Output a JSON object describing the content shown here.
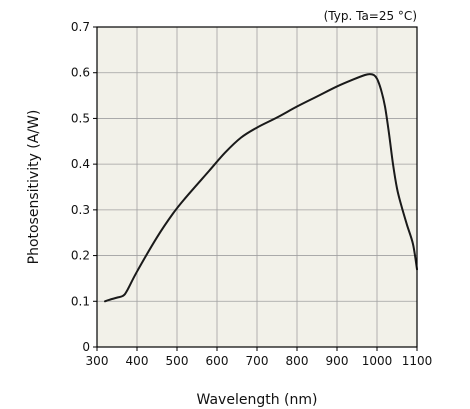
{
  "chart_data": {
    "type": "line",
    "annotation": "(Typ. Ta=25 °C)",
    "xlabel": "Wavelength (nm)",
    "ylabel": "Photosensitivity (A/W)",
    "xlim": [
      300,
      1100
    ],
    "ylim": [
      0,
      0.7
    ],
    "xticks": [
      300,
      400,
      500,
      600,
      700,
      800,
      900,
      1000,
      1100
    ],
    "yticks": [
      0,
      0.1,
      0.2,
      0.3,
      0.4,
      0.5,
      0.6,
      0.7
    ],
    "xtick_labels": [
      "300",
      "400",
      "500",
      "600",
      "700",
      "800",
      "900",
      "1000",
      "1100"
    ],
    "ytick_labels": [
      "0",
      "0.1",
      "0.2",
      "0.3",
      "0.4",
      "0.5",
      "0.6",
      "0.7"
    ],
    "grid": true,
    "colors": {
      "plot_background": "#f2f1e9",
      "grid": "#a0a0a0",
      "line": "#1a1a1a",
      "frame": "#000000"
    },
    "series": [
      {
        "x": [
          320,
          330,
          350,
          365,
          375,
          400,
          450,
          490,
          520,
          580,
          620,
          660,
          700,
          750,
          800,
          850,
          900,
          940,
          970,
          982,
          992,
          1000,
          1010,
          1020,
          1030,
          1040,
          1050,
          1060,
          1075,
          1090,
          1100
        ],
        "y": [
          0.1,
          0.103,
          0.108,
          0.112,
          0.123,
          0.165,
          0.24,
          0.292,
          0.325,
          0.385,
          0.425,
          0.458,
          0.48,
          0.502,
          0.526,
          0.548,
          0.57,
          0.585,
          0.595,
          0.597,
          0.595,
          0.587,
          0.563,
          0.526,
          0.467,
          0.4,
          0.347,
          0.312,
          0.267,
          0.225,
          0.17
        ]
      }
    ]
  }
}
